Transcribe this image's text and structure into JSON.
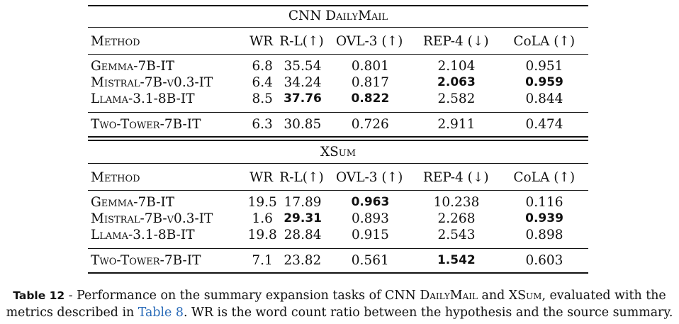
{
  "header": [
    "Method",
    "WR",
    "R-L(↑)",
    "OVL-3 (↑)",
    "REP-4 (↓)",
    "CoLA (↑)"
  ],
  "sections": [
    {
      "title": "CNN DailyMail",
      "rows": [
        {
          "method": "Gemma-7B-IT",
          "wr": "6.8",
          "rl": "35.54",
          "ovl": "0.801",
          "rep": "2.104",
          "cola": "0.951"
        },
        {
          "method": "Mistral-7B-v0.3-IT",
          "wr": "6.4",
          "rl": "34.24",
          "ovl": "0.817",
          "rep": "2.063",
          "cola": "0.959"
        },
        {
          "method": "Llama-3.1-8B-IT",
          "wr": "8.5",
          "rl": "37.76",
          "ovl": "0.822",
          "rep": "2.582",
          "cola": "0.844"
        }
      ],
      "extra": {
        "method": "Two-Tower-7B-IT",
        "wr": "6.3",
        "rl": "30.85",
        "ovl": "0.726",
        "rep": "2.911",
        "cola": "0.474"
      }
    },
    {
      "title": "XSum",
      "rows": [
        {
          "method": "Gemma-7B-IT",
          "wr": "19.5",
          "rl": "17.89",
          "ovl": "0.963",
          "rep": "10.238",
          "cola": "0.116"
        },
        {
          "method": "Mistral-7B-v0.3-IT",
          "wr": "1.6",
          "rl": "29.31",
          "ovl": "0.893",
          "rep": "2.268",
          "cola": "0.939"
        },
        {
          "method": "Llama-3.1-8B-IT",
          "wr": "19.8",
          "rl": "28.84",
          "ovl": "0.915",
          "rep": "2.543",
          "cola": "0.898"
        }
      ],
      "extra": {
        "method": "Two-Tower-7B-IT",
        "wr": "7.1",
        "rl": "23.82",
        "ovl": "0.561",
        "rep": "1.542",
        "cola": "0.603"
      }
    }
  ],
  "caption": {
    "label": "Table 12",
    "part1": " - Performance on the summary expansion tasks of CNN ",
    "name1": "DailyMail",
    "part2": " and ",
    "name2": "XSum",
    "part3": ", evaluated with the metrics described in ",
    "link": "Table 8",
    "part4": ". WR is the word count ratio between the hypothesis and the source summary."
  }
}
